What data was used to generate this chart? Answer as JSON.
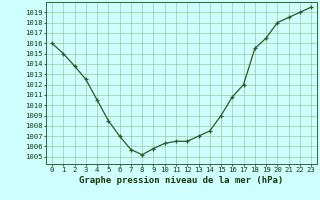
{
  "x": [
    0,
    1,
    2,
    3,
    4,
    5,
    6,
    7,
    8,
    9,
    10,
    11,
    12,
    13,
    14,
    15,
    16,
    17,
    18,
    19,
    20,
    21,
    22,
    23
  ],
  "y": [
    1016.0,
    1015.0,
    1013.8,
    1012.5,
    1010.5,
    1008.5,
    1007.0,
    1005.7,
    1005.2,
    1005.8,
    1006.3,
    1006.5,
    1006.5,
    1007.0,
    1007.5,
    1009.0,
    1010.8,
    1012.0,
    1015.5,
    1016.5,
    1018.0,
    1018.5,
    1019.0,
    1019.5
  ],
  "line_color": "#2d5a27",
  "marker_color": "#2d5a27",
  "bg_color": "#cefefe",
  "plot_bg_color": "#cefefe",
  "grid_color": "#99cc99",
  "xlabel": "Graphe pression niveau de la mer (hPa)",
  "ylabel_ticks": [
    1005,
    1006,
    1007,
    1008,
    1009,
    1010,
    1011,
    1012,
    1013,
    1014,
    1015,
    1016,
    1017,
    1018,
    1019
  ],
  "ylim": [
    1004.3,
    1020.0
  ],
  "xlim": [
    -0.5,
    23.5
  ],
  "title_color": "#1a3a0a",
  "xlabel_fontsize": 6.5,
  "tick_fontsize": 5.2,
  "xlabel_ticks": [
    0,
    1,
    2,
    3,
    4,
    5,
    6,
    7,
    8,
    9,
    10,
    11,
    12,
    13,
    14,
    15,
    16,
    17,
    18,
    19,
    20,
    21,
    22,
    23
  ],
  "spine_color": "#336633",
  "line_width": 0.9,
  "marker_size": 3.5
}
